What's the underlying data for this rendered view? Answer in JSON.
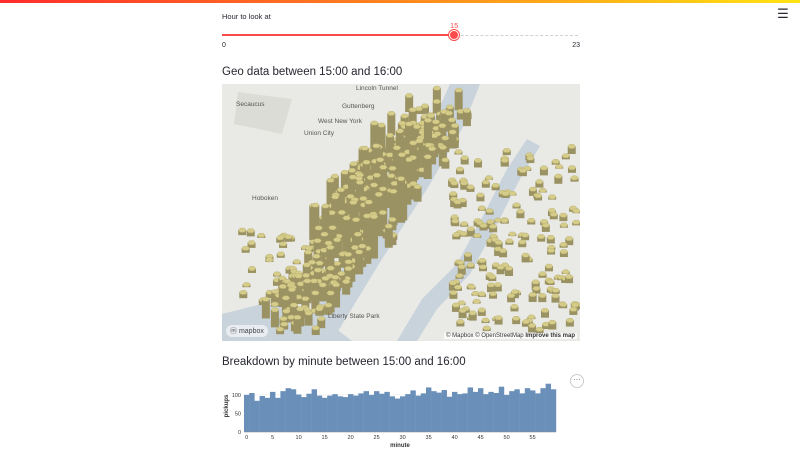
{
  "slider": {
    "label": "Hour to look at",
    "value": 15,
    "min": 0,
    "max": 23,
    "accent": "#ff4b4b"
  },
  "menu": {
    "icon": "hamburger-icon",
    "glyph": "☰"
  },
  "geo": {
    "heading": "Geo data between 15:00 and 16:00"
  },
  "map": {
    "labels": [
      "Secaucus",
      "Hoboken",
      "West New York",
      "Union City",
      "Guttenberg",
      "Lincoln Tunnel",
      "Liberty State Park"
    ],
    "attribution_prefix": "© Mapbox © OpenStreetMap",
    "attribution_link": "Improve this map",
    "logo": "mapbox",
    "hex_color": "#d6cc8a",
    "water_color": "#c9d3dc",
    "land_color": "#e9e9e6"
  },
  "breakdown": {
    "heading": "Breakdown by minute between 15:00 and 16:00",
    "more_glyph": "···"
  },
  "chart_data": {
    "type": "bar",
    "xlabel": "minute",
    "ylabel": "pickups",
    "ylim": [
      0,
      140
    ],
    "yticks": [
      0,
      50,
      100
    ],
    "xticks": [
      0,
      5,
      10,
      15,
      20,
      25,
      30,
      35,
      40,
      45,
      50,
      55
    ],
    "color": "#6a8fb8",
    "x": [
      0,
      1,
      2,
      3,
      4,
      5,
      6,
      7,
      8,
      9,
      10,
      11,
      12,
      13,
      14,
      15,
      16,
      17,
      18,
      19,
      20,
      21,
      22,
      23,
      24,
      25,
      26,
      27,
      28,
      29,
      30,
      31,
      32,
      33,
      34,
      35,
      36,
      37,
      38,
      39,
      40,
      41,
      42,
      43,
      44,
      45,
      46,
      47,
      48,
      49,
      50,
      51,
      52,
      53,
      54,
      55,
      56,
      57,
      58,
      59
    ],
    "values": [
      100,
      105,
      84,
      97,
      92,
      108,
      92,
      110,
      118,
      115,
      101,
      94,
      103,
      115,
      98,
      92,
      98,
      102,
      96,
      94,
      102,
      98,
      104,
      110,
      100,
      110,
      103,
      108,
      96,
      90,
      96,
      102,
      112,
      98,
      104,
      120,
      110,
      106,
      113,
      95,
      108,
      102,
      104,
      120,
      108,
      118,
      102,
      108,
      105,
      122,
      100,
      110,
      115,
      104,
      118,
      112,
      104,
      118,
      130,
      115
    ]
  }
}
